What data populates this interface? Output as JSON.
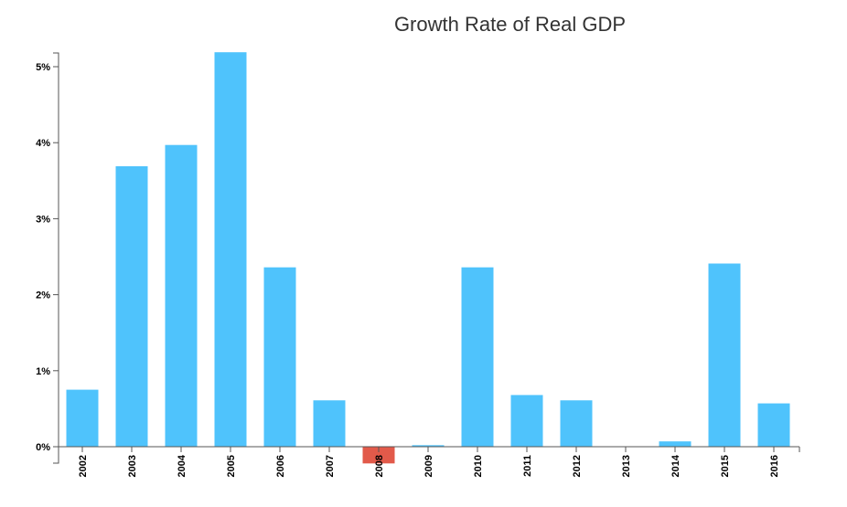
{
  "chart_data": {
    "type": "bar",
    "title": "Growth Rate of Real GDP",
    "xlabel": "",
    "ylabel": "",
    "categories": [
      "2002",
      "2003",
      "2004",
      "2005",
      "2006",
      "2007",
      "2008",
      "2009",
      "2010",
      "2011",
      "2012",
      "2013",
      "2014",
      "2015",
      "2016"
    ],
    "values": [
      0.75,
      3.69,
      3.97,
      5.19,
      2.36,
      0.61,
      -0.22,
      0.02,
      2.36,
      0.68,
      0.61,
      0.0,
      0.07,
      2.41,
      0.57
    ],
    "ylim": [
      -0.22,
      5.2
    ],
    "yticks": [
      0,
      1,
      2,
      3,
      4,
      5
    ],
    "ytick_labels": [
      "0%",
      "1%",
      "2%",
      "3%",
      "4%",
      "5%"
    ],
    "grid": false,
    "colors": {
      "positive": "#4fc3fc",
      "negative": "#e25a4a",
      "axis": "#555555"
    }
  }
}
